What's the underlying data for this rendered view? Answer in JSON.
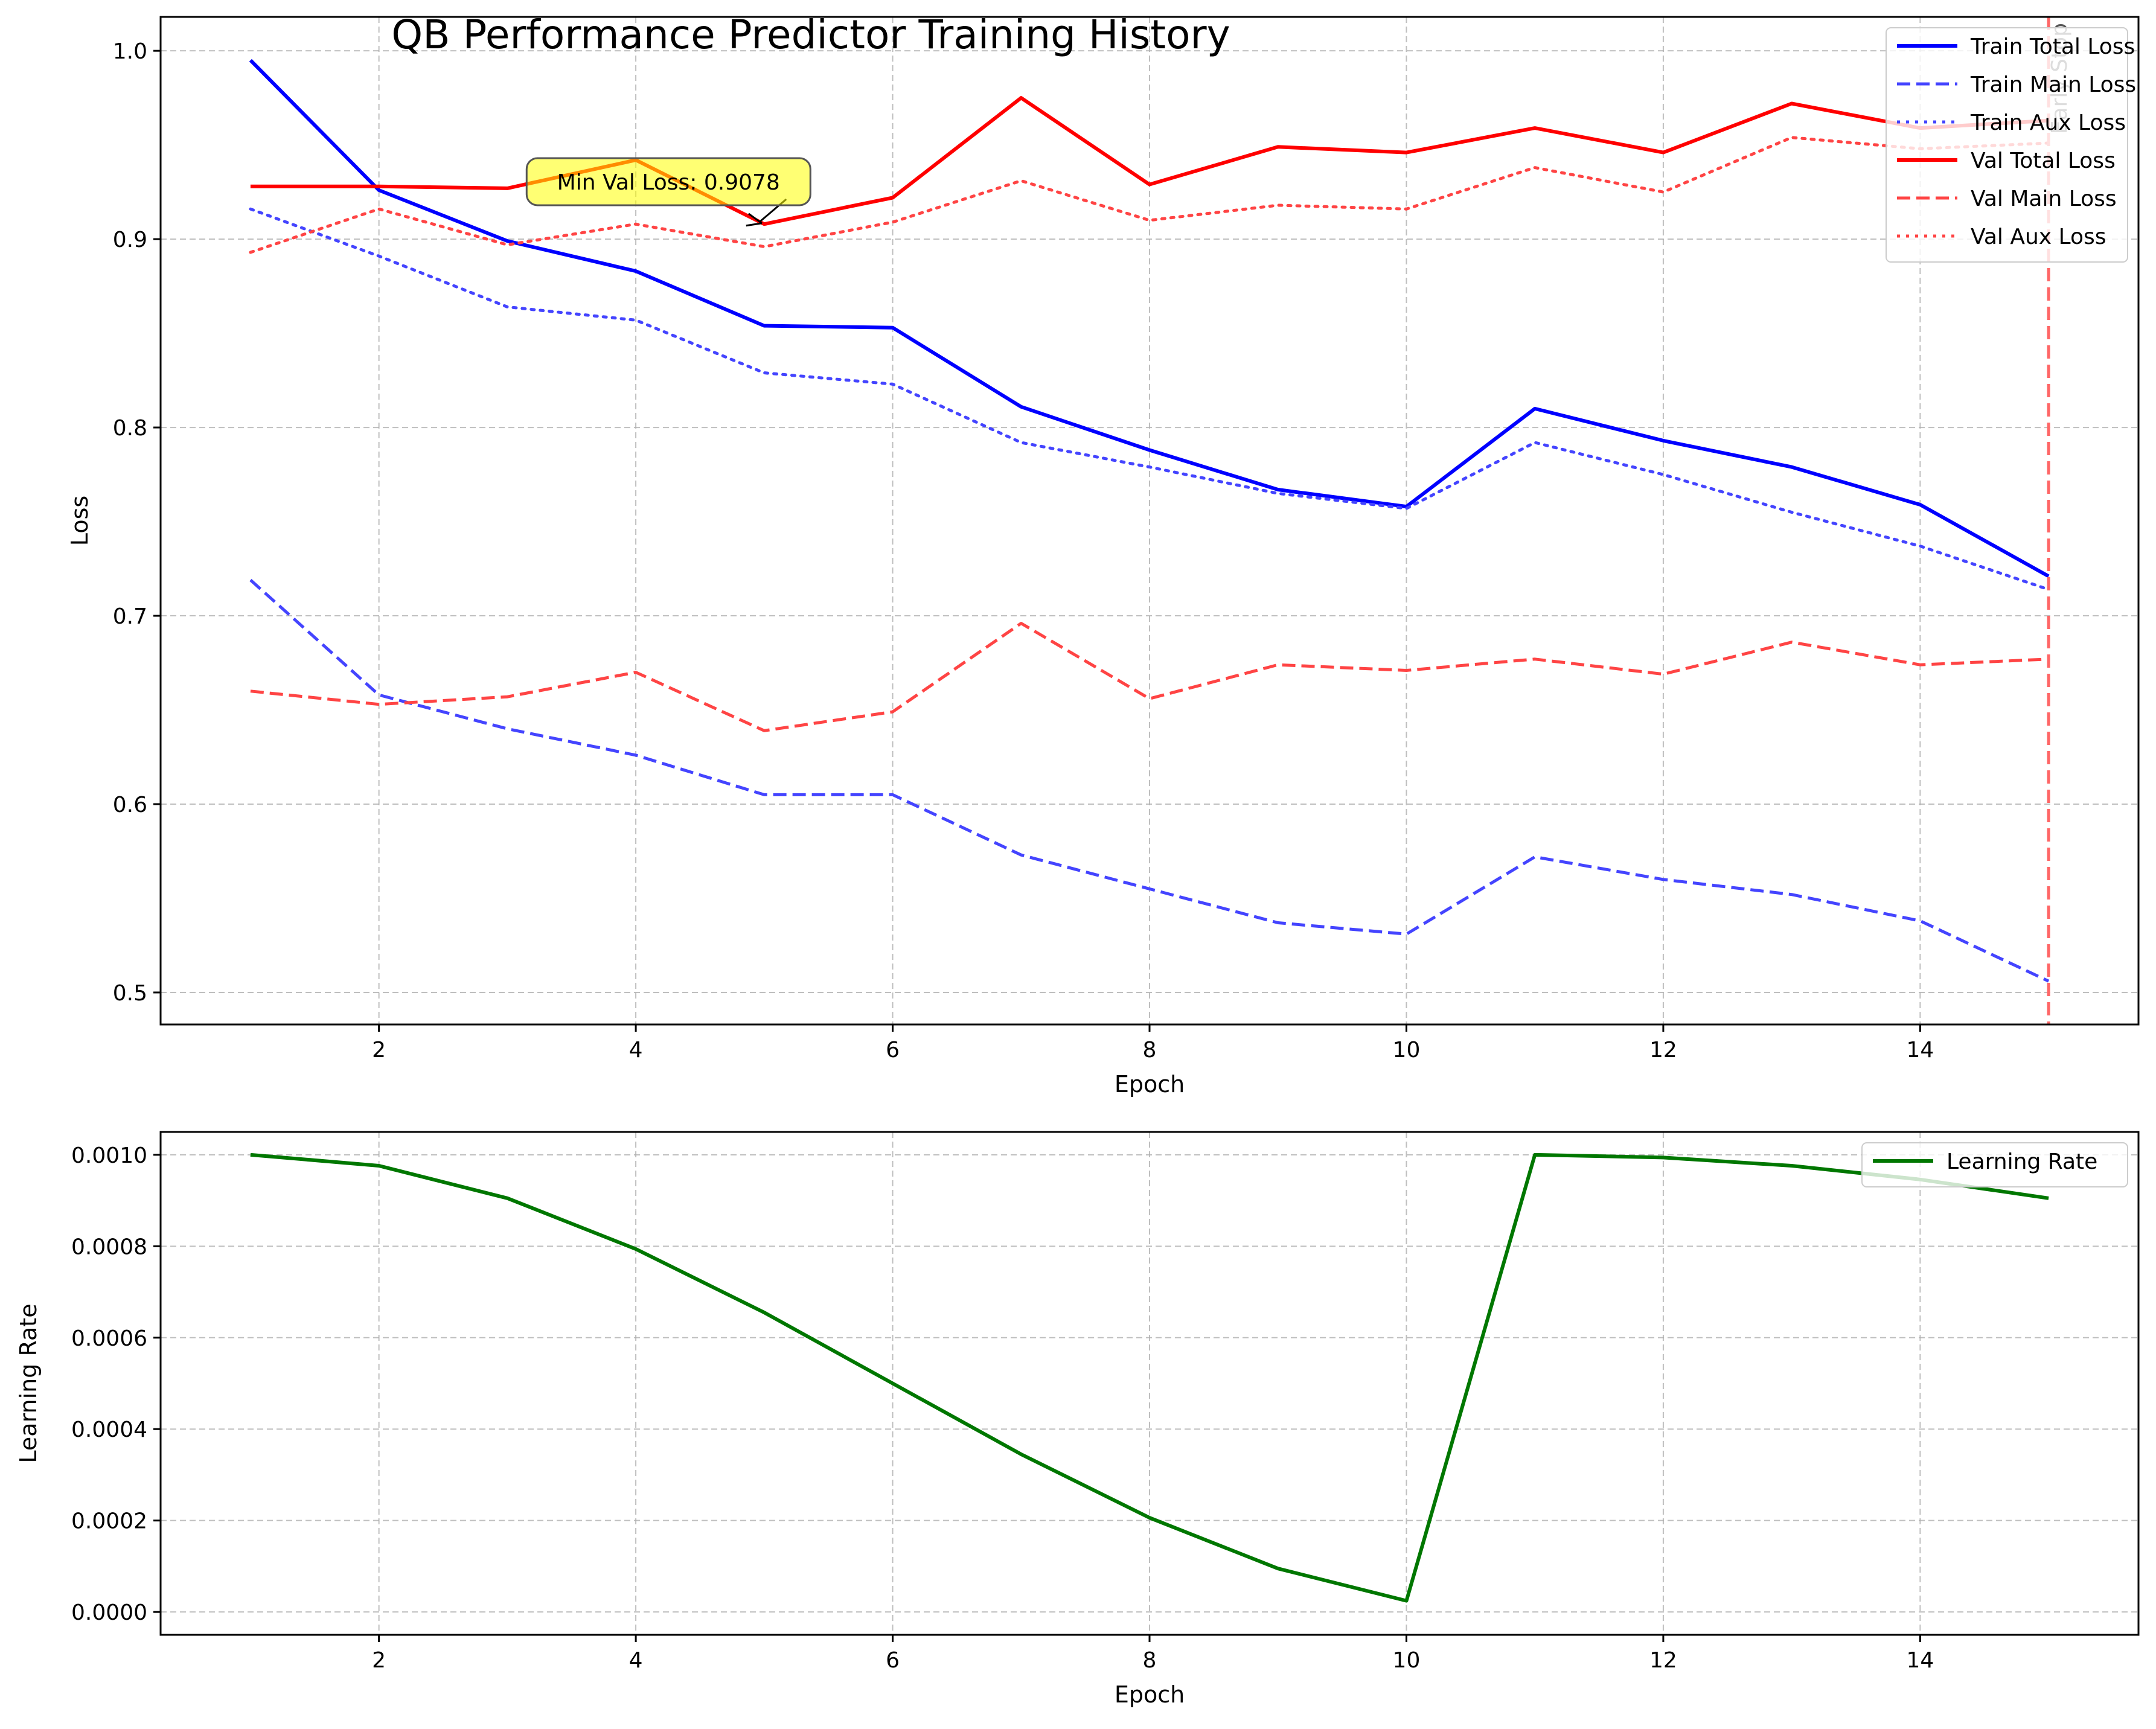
{
  "figure": {
    "title": "QB Performance Predictor Training History"
  },
  "chart_data": [
    {
      "type": "line",
      "title": "QB Performance Predictor Training History",
      "xlabel": "Epoch",
      "ylabel": "Loss",
      "xlim": [
        0.3,
        15.7
      ],
      "ylim": [
        0.483,
        1.018
      ],
      "xticks": [
        2,
        4,
        6,
        8,
        10,
        12,
        14
      ],
      "yticks": [
        0.5,
        0.6,
        0.7,
        0.8,
        0.9,
        1.0
      ],
      "grid": true,
      "legend_position": "top-right",
      "x": [
        1,
        2,
        3,
        4,
        5,
        6,
        7,
        8,
        9,
        10,
        11,
        12,
        13,
        14,
        15
      ],
      "series": [
        {
          "name": "Train Total Loss",
          "color": "#0000ff",
          "style": "solid",
          "values": [
            0.995,
            0.926,
            0.899,
            0.883,
            0.854,
            0.853,
            0.811,
            0.788,
            0.767,
            0.758,
            0.81,
            0.793,
            0.779,
            0.759,
            0.721
          ]
        },
        {
          "name": "Train Main Loss",
          "color": "#4444ff",
          "style": "dashed",
          "values": [
            0.719,
            0.658,
            0.64,
            0.626,
            0.605,
            0.605,
            0.573,
            0.555,
            0.537,
            0.531,
            0.572,
            0.56,
            0.552,
            0.538,
            0.506
          ]
        },
        {
          "name": "Train Aux Loss",
          "color": "#4444ff",
          "style": "dotted",
          "values": [
            0.916,
            0.891,
            0.864,
            0.857,
            0.829,
            0.823,
            0.792,
            0.779,
            0.765,
            0.757,
            0.792,
            0.775,
            0.755,
            0.737,
            0.714
          ]
        },
        {
          "name": "Val Total Loss",
          "color": "#ff0000",
          "style": "solid",
          "values": [
            0.928,
            0.928,
            0.927,
            0.942,
            0.908,
            0.922,
            0.975,
            0.929,
            0.949,
            0.946,
            0.959,
            0.946,
            0.972,
            0.959,
            0.963
          ]
        },
        {
          "name": "Val Main Loss",
          "color": "#ff4444",
          "style": "dashed",
          "values": [
            0.66,
            0.653,
            0.657,
            0.67,
            0.639,
            0.649,
            0.696,
            0.656,
            0.674,
            0.671,
            0.677,
            0.669,
            0.686,
            0.674,
            0.677
          ]
        },
        {
          "name": "Val Aux Loss",
          "color": "#ff4444",
          "style": "dotted",
          "values": [
            0.893,
            0.916,
            0.897,
            0.908,
            0.896,
            0.909,
            0.931,
            0.91,
            0.918,
            0.916,
            0.938,
            0.925,
            0.954,
            0.948,
            0.951
          ]
        }
      ],
      "annotation": {
        "text": "Min Val Loss: 0.9078",
        "point": [
          5,
          0.9078
        ]
      },
      "vline": {
        "x": 15,
        "color": "#ff6666",
        "label": "Early Stop"
      }
    },
    {
      "type": "line",
      "xlabel": "Epoch",
      "ylabel": "Learning Rate",
      "xlim": [
        0.3,
        15.7
      ],
      "ylim": [
        -5e-05,
        0.00105
      ],
      "xticks": [
        2,
        4,
        6,
        8,
        10,
        12,
        14
      ],
      "yticks": [
        0.0,
        0.0002,
        0.0004,
        0.0006,
        0.0008,
        0.001
      ],
      "ytick_labels": [
        "0.0000",
        "0.0002",
        "0.0004",
        "0.0006",
        "0.0008",
        "0.0010"
      ],
      "grid": true,
      "legend_position": "top-right",
      "x": [
        1,
        2,
        3,
        4,
        5,
        6,
        7,
        8,
        9,
        10,
        11,
        12,
        13,
        14,
        15
      ],
      "series": [
        {
          "name": "Learning Rate",
          "color": "#007700",
          "style": "solid",
          "values": [
            0.001,
            0.000976,
            0.000905,
            0.000794,
            0.000655,
            0.0005,
            0.000345,
            0.000206,
            9.5e-05,
            2.45e-05,
            0.001,
            0.000994,
            0.000976,
            0.000946,
            0.000905
          ]
        }
      ]
    }
  ]
}
